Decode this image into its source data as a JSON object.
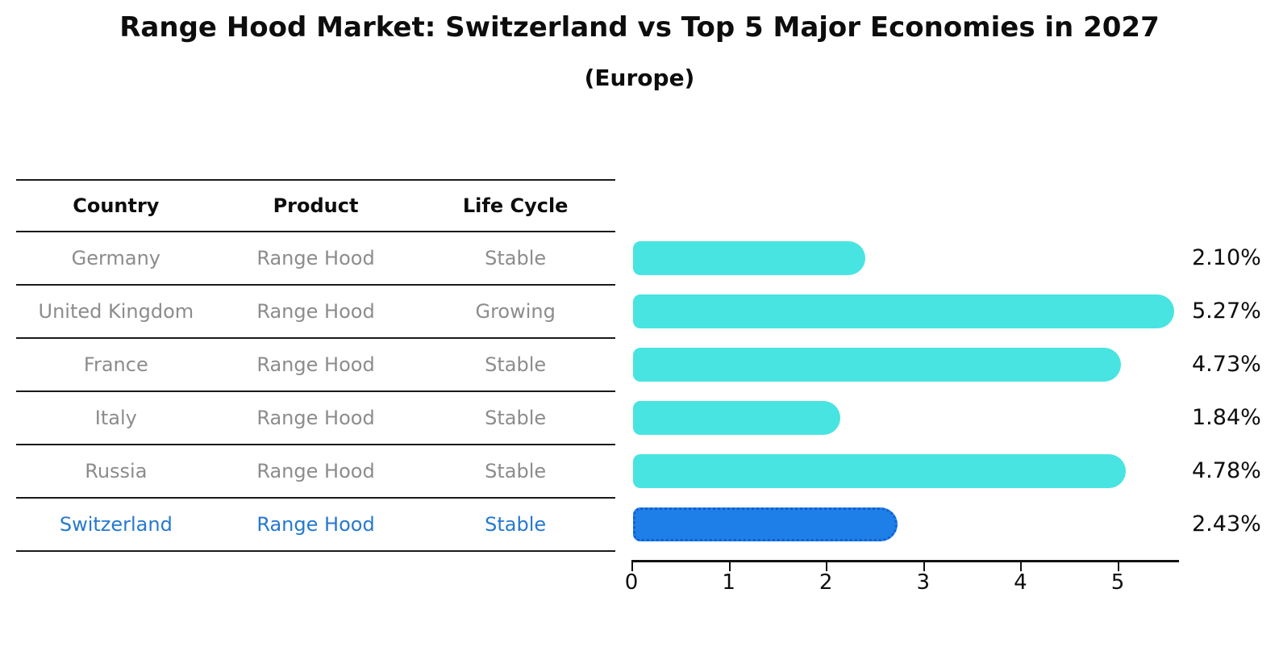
{
  "title": "Range Hood Market: Switzerland vs Top 5 Major Economies in 2027",
  "subtitle": "(Europe)",
  "table": {
    "headers": [
      "Country",
      "Product",
      "Life Cycle"
    ],
    "rows": [
      {
        "country": "Germany",
        "product": "Range Hood",
        "life_cycle": "Stable",
        "highlighted": false
      },
      {
        "country": "United Kingdom",
        "product": "Range Hood",
        "life_cycle": "Growing",
        "highlighted": false
      },
      {
        "country": "France",
        "product": "Range Hood",
        "life_cycle": "Stable",
        "highlighted": false
      },
      {
        "country": "Italy",
        "product": "Range Hood",
        "life_cycle": "Stable",
        "highlighted": false
      },
      {
        "country": "Russia",
        "product": "Range Hood",
        "life_cycle": "Stable",
        "highlighted": false
      },
      {
        "country": "Switzerland",
        "product": "Range Hood",
        "life_cycle": "Stable",
        "highlighted": true
      }
    ]
  },
  "chart_data": {
    "type": "bar",
    "orientation": "horizontal",
    "title": "Range Hood Market: Switzerland vs Top 5 Major Economies in 2027 (Europe)",
    "categories": [
      "Germany",
      "United Kingdom",
      "France",
      "Italy",
      "Russia",
      "Switzerland"
    ],
    "values": [
      2.1,
      5.27,
      4.73,
      1.84,
      4.78,
      2.43
    ],
    "value_labels": [
      "2.10%",
      "5.27%",
      "4.73%",
      "1.84%",
      "4.78%",
      "2.43%"
    ],
    "unit": "%",
    "x_ticks": [
      0,
      1,
      2,
      3,
      4,
      5
    ],
    "xlim": [
      0,
      5.6
    ],
    "grid": false,
    "legend": "none",
    "highlight_index": 5,
    "bar_color": "#47e4e1",
    "highlight_bar_color": "#1f7fe8",
    "highlight_border_color": "#1160d4",
    "highlight_text_color": "#2679ce",
    "table_text_color": "#8c8c8c"
  }
}
